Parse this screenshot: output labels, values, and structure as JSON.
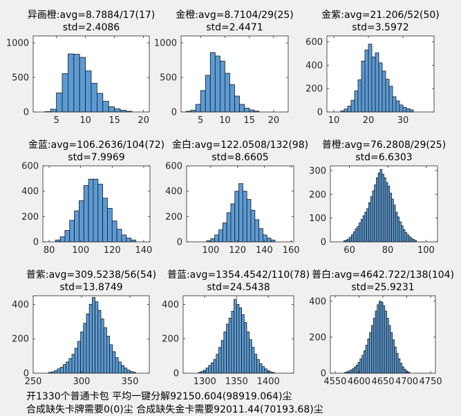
{
  "footer": {
    "line1": "开1330个普通卡包  平均一键分解92150.604(98919.064)尘",
    "line2": "合成缺失卡牌需要0(0)尘  合成缺失金卡需要92011.44(70193.68)尘"
  },
  "colors": {
    "bar": "#5b9bd5",
    "edge": "#1a1a1a",
    "axes": "#262626",
    "background": "#f0f0f0"
  },
  "chart_data": [
    {
      "type": "bar",
      "title": "异画橙:avg=8.7884/17(17)",
      "subtitle": "std=2.4086",
      "xlim": [
        1,
        21
      ],
      "ylim": [
        0,
        1100
      ],
      "xticks": [
        5,
        10,
        15,
        20
      ],
      "yticks": [
        0,
        500,
        1000
      ],
      "bins": [
        [
          3,
          4,
          5
        ],
        [
          4,
          5,
          40
        ],
        [
          5,
          6,
          275
        ],
        [
          6,
          7,
          555
        ],
        [
          7,
          8,
          840
        ],
        [
          8,
          9,
          835
        ],
        [
          9,
          10,
          790
        ],
        [
          10,
          11,
          595
        ],
        [
          11,
          12,
          415
        ],
        [
          12,
          13,
          270
        ],
        [
          13,
          14,
          155
        ],
        [
          14,
          15,
          75
        ],
        [
          15,
          16,
          45
        ],
        [
          16,
          17,
          25
        ],
        [
          17,
          18,
          10
        ]
      ]
    },
    {
      "type": "bar",
      "title": "金橙:avg=8.7104/29(25)",
      "subtitle": "std=2.4471",
      "xlim": [
        1,
        23
      ],
      "ylim": [
        0,
        1100
      ],
      "xticks": [
        5,
        10,
        15,
        20
      ],
      "yticks": [
        0,
        500,
        1000
      ],
      "bins": [
        [
          2,
          3,
          10
        ],
        [
          3,
          4,
          25
        ],
        [
          4,
          5,
          110
        ],
        [
          5,
          6,
          310
        ],
        [
          6,
          7,
          530
        ],
        [
          7,
          8,
          860
        ],
        [
          8,
          9,
          810
        ],
        [
          9,
          10,
          735
        ],
        [
          10,
          11,
          560
        ],
        [
          11,
          12,
          395
        ],
        [
          12,
          13,
          230
        ],
        [
          13,
          14,
          110
        ],
        [
          14,
          15,
          55
        ],
        [
          15,
          16,
          30
        ],
        [
          16,
          17,
          12
        ]
      ]
    },
    {
      "type": "bar",
      "title": "金紫:avg=21.206/52(50)",
      "subtitle": "std=3.5972",
      "xlim": [
        8,
        39
      ],
      "ylim": [
        0,
        650
      ],
      "xticks": [
        10,
        20,
        30
      ],
      "yticks": [
        0,
        200,
        400,
        600
      ],
      "bins": [
        [
          12,
          13,
          10
        ],
        [
          13,
          14,
          25
        ],
        [
          14,
          15,
          50
        ],
        [
          15,
          16,
          100
        ],
        [
          16,
          17,
          180
        ],
        [
          17,
          18,
          275
        ],
        [
          18,
          19,
          435
        ],
        [
          19,
          20,
          530
        ],
        [
          20,
          21,
          580
        ],
        [
          21,
          22,
          470
        ],
        [
          22,
          23,
          505
        ],
        [
          23,
          24,
          420
        ],
        [
          24,
          25,
          350
        ],
        [
          25,
          26,
          280
        ],
        [
          26,
          27,
          220
        ],
        [
          27,
          28,
          130
        ],
        [
          28,
          29,
          95
        ],
        [
          29,
          30,
          60
        ],
        [
          30,
          31,
          40
        ],
        [
          31,
          32,
          28
        ],
        [
          32,
          33,
          18
        ]
      ]
    },
    {
      "type": "bar",
      "title": "金蓝:avg=106.2636/104(72)",
      "subtitle": "std=7.9969",
      "xlim": [
        76,
        144
      ],
      "ylim": [
        0,
        600
      ],
      "xticks": [
        80,
        100,
        120,
        140
      ],
      "yticks": [
        0,
        200,
        400,
        600
      ],
      "bins": [
        [
          84,
          87,
          15
        ],
        [
          87,
          90,
          40
        ],
        [
          90,
          93,
          90
        ],
        [
          93,
          96,
          170
        ],
        [
          96,
          99,
          245
        ],
        [
          99,
          102,
          325
        ],
        [
          102,
          105,
          445
        ],
        [
          105,
          108,
          495
        ],
        [
          108,
          111,
          495
        ],
        [
          111,
          114,
          455
        ],
        [
          114,
          117,
          345
        ],
        [
          117,
          120,
          265
        ],
        [
          120,
          123,
          165
        ],
        [
          123,
          126,
          100
        ],
        [
          126,
          129,
          55
        ],
        [
          129,
          132,
          30
        ],
        [
          132,
          135,
          15
        ]
      ]
    },
    {
      "type": "bar",
      "title": "金白:avg=122.0508/132(98)",
      "subtitle": "std=8.6605",
      "xlim": [
        82,
        162
      ],
      "ylim": [
        0,
        600
      ],
      "xticks": [
        100,
        120,
        140,
        160
      ],
      "yticks": [
        0,
        200,
        400,
        600
      ],
      "bins": [
        [
          97,
          100,
          10
        ],
        [
          100,
          103,
          25
        ],
        [
          103,
          106,
          55
        ],
        [
          106,
          109,
          95
        ],
        [
          109,
          112,
          150
        ],
        [
          112,
          115,
          230
        ],
        [
          115,
          118,
          300
        ],
        [
          118,
          121,
          400
        ],
        [
          121,
          124,
          460
        ],
        [
          124,
          127,
          400
        ],
        [
          127,
          130,
          335
        ],
        [
          130,
          133,
          250
        ],
        [
          133,
          136,
          175
        ],
        [
          136,
          139,
          105
        ],
        [
          139,
          142,
          55
        ],
        [
          142,
          145,
          30
        ],
        [
          145,
          148,
          15
        ]
      ]
    },
    {
      "type": "bar",
      "title": "普橙:avg=76.2808/29(25)",
      "subtitle": "std=6.6303",
      "xlim": [
        50,
        106
      ],
      "ylim": [
        0,
        320
      ],
      "xticks": [
        60,
        80,
        100
      ],
      "yticks": [
        0,
        100,
        200,
        300
      ],
      "bins": [
        [
          57,
          58,
          5
        ],
        [
          58,
          59,
          8
        ],
        [
          59,
          60,
          12
        ],
        [
          60,
          61,
          20
        ],
        [
          61,
          62,
          30
        ],
        [
          62,
          63,
          42
        ],
        [
          63,
          64,
          55
        ],
        [
          64,
          65,
          65
        ],
        [
          65,
          66,
          80
        ],
        [
          66,
          67,
          95
        ],
        [
          67,
          68,
          110
        ],
        [
          68,
          69,
          125
        ],
        [
          69,
          70,
          140
        ],
        [
          70,
          71,
          165
        ],
        [
          71,
          72,
          190
        ],
        [
          72,
          73,
          215
        ],
        [
          73,
          74,
          240
        ],
        [
          74,
          75,
          270
        ],
        [
          75,
          76,
          290
        ],
        [
          76,
          77,
          305
        ],
        [
          77,
          78,
          285
        ],
        [
          78,
          79,
          270
        ],
        [
          79,
          80,
          250
        ],
        [
          80,
          81,
          235
        ],
        [
          81,
          82,
          205
        ],
        [
          82,
          83,
          180
        ],
        [
          83,
          84,
          155
        ],
        [
          84,
          85,
          125
        ],
        [
          85,
          86,
          105
        ],
        [
          86,
          87,
          85
        ],
        [
          87,
          88,
          68
        ],
        [
          88,
          89,
          52
        ],
        [
          89,
          90,
          40
        ],
        [
          90,
          91,
          30
        ],
        [
          91,
          92,
          22
        ],
        [
          92,
          93,
          15
        ],
        [
          93,
          94,
          10
        ],
        [
          94,
          95,
          6
        ]
      ]
    },
    {
      "type": "bar",
      "title": "普紫:avg=309.5238/56(54)",
      "subtitle": "std=13.8749",
      "xlim": [
        250,
        370
      ],
      "ylim": [
        0,
        450
      ],
      "xticks": [
        250,
        300,
        350
      ],
      "yticks": [
        0,
        200,
        400
      ],
      "bins": [
        [
          266,
          269,
          5
        ],
        [
          269,
          272,
          8
        ],
        [
          272,
          275,
          15
        ],
        [
          275,
          278,
          25
        ],
        [
          278,
          281,
          35
        ],
        [
          281,
          284,
          50
        ],
        [
          284,
          287,
          65
        ],
        [
          287,
          290,
          85
        ],
        [
          290,
          293,
          110
        ],
        [
          293,
          296,
          145
        ],
        [
          296,
          299,
          185
        ],
        [
          299,
          302,
          240
        ],
        [
          302,
          305,
          290
        ],
        [
          305,
          308,
          345
        ],
        [
          308,
          311,
          400
        ],
        [
          311,
          314,
          440
        ],
        [
          314,
          317,
          415
        ],
        [
          317,
          320,
          365
        ],
        [
          320,
          323,
          315
        ],
        [
          323,
          326,
          265
        ],
        [
          326,
          329,
          215
        ],
        [
          329,
          332,
          165
        ],
        [
          332,
          335,
          125
        ],
        [
          335,
          338,
          90
        ],
        [
          338,
          341,
          65
        ],
        [
          341,
          344,
          45
        ],
        [
          344,
          347,
          30
        ],
        [
          347,
          350,
          18
        ],
        [
          350,
          353,
          10
        ],
        [
          353,
          356,
          5
        ]
      ]
    },
    {
      "type": "bar",
      "title": "普蓝:avg=1354.4542/110(78)",
      "subtitle": "std=24.5438",
      "xlim": [
        1266,
        1440
      ],
      "ylim": [
        0,
        450
      ],
      "xticks": [
        1300,
        1350,
        1400
      ],
      "yticks": [
        0,
        200,
        400
      ],
      "bins": [
        [
          1290,
          1294,
          5
        ],
        [
          1294,
          1298,
          10
        ],
        [
          1298,
          1302,
          18
        ],
        [
          1302,
          1306,
          30
        ],
        [
          1306,
          1310,
          45
        ],
        [
          1310,
          1314,
          60
        ],
        [
          1314,
          1318,
          80
        ],
        [
          1318,
          1322,
          110
        ],
        [
          1322,
          1326,
          150
        ],
        [
          1326,
          1330,
          190
        ],
        [
          1330,
          1334,
          240
        ],
        [
          1334,
          1338,
          285
        ],
        [
          1338,
          1342,
          320
        ],
        [
          1342,
          1346,
          360
        ],
        [
          1346,
          1350,
          430
        ],
        [
          1350,
          1354,
          400
        ],
        [
          1354,
          1358,
          380
        ],
        [
          1358,
          1362,
          340
        ],
        [
          1362,
          1366,
          295
        ],
        [
          1366,
          1370,
          240
        ],
        [
          1370,
          1374,
          195
        ],
        [
          1374,
          1378,
          150
        ],
        [
          1378,
          1382,
          110
        ],
        [
          1382,
          1386,
          80
        ],
        [
          1386,
          1390,
          55
        ],
        [
          1390,
          1394,
          38
        ],
        [
          1394,
          1398,
          25
        ],
        [
          1398,
          1402,
          15
        ],
        [
          1402,
          1406,
          8
        ],
        [
          1406,
          1410,
          4
        ]
      ]
    },
    {
      "type": "bar",
      "title": "普白:avg=4642.722/138(104)",
      "subtitle": "std=25.9231",
      "xlim": [
        4540,
        4760
      ],
      "ylim": [
        0,
        430
      ],
      "xticks": [
        4550,
        4600,
        4650,
        4700,
        4750
      ],
      "yticks": [
        0,
        200,
        400
      ],
      "bins": [
        [
          4570,
          4574,
          5
        ],
        [
          4574,
          4578,
          8
        ],
        [
          4578,
          4582,
          12
        ],
        [
          4582,
          4586,
          18
        ],
        [
          4586,
          4590,
          25
        ],
        [
          4590,
          4594,
          35
        ],
        [
          4594,
          4598,
          45
        ],
        [
          4598,
          4602,
          60
        ],
        [
          4602,
          4606,
          80
        ],
        [
          4606,
          4610,
          100
        ],
        [
          4610,
          4614,
          125
        ],
        [
          4614,
          4618,
          155
        ],
        [
          4618,
          4622,
          190
        ],
        [
          4622,
          4626,
          225
        ],
        [
          4626,
          4630,
          265
        ],
        [
          4630,
          4634,
          305
        ],
        [
          4634,
          4638,
          345
        ],
        [
          4638,
          4642,
          380
        ],
        [
          4642,
          4646,
          400
        ],
        [
          4646,
          4650,
          395
        ],
        [
          4650,
          4654,
          375
        ],
        [
          4654,
          4658,
          345
        ],
        [
          4658,
          4662,
          305
        ],
        [
          4662,
          4666,
          265
        ],
        [
          4666,
          4670,
          225
        ],
        [
          4670,
          4674,
          185
        ],
        [
          4674,
          4678,
          145
        ],
        [
          4678,
          4682,
          110
        ],
        [
          4682,
          4686,
          80
        ],
        [
          4686,
          4690,
          55
        ],
        [
          4690,
          4694,
          35
        ],
        [
          4694,
          4698,
          22
        ],
        [
          4698,
          4702,
          12
        ],
        [
          4702,
          4706,
          6
        ]
      ]
    }
  ]
}
